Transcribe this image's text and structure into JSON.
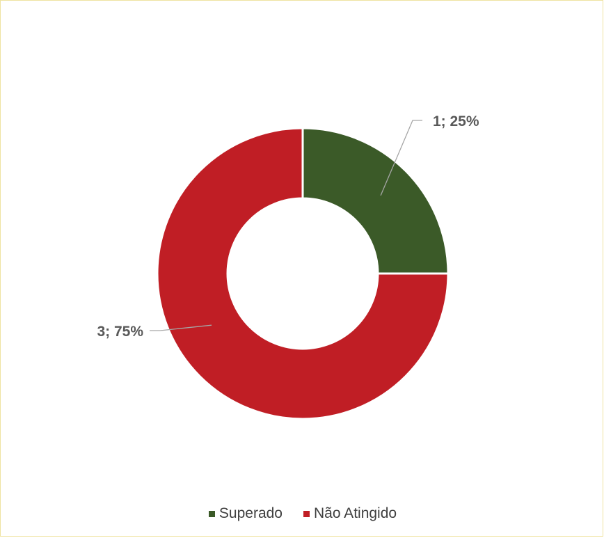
{
  "chart_data": {
    "type": "pie",
    "variant": "doughnut",
    "title": "",
    "categories": [
      "Superado",
      "Não Atingido"
    ],
    "values": [
      1,
      3
    ],
    "percentages": [
      25,
      75
    ],
    "colors": [
      "#3b5a28",
      "#c01e25"
    ],
    "data_labels": [
      "1; 25%",
      "3; 75%"
    ],
    "legend": {
      "position": "bottom",
      "entries": [
        {
          "label": "Superado",
          "color": "#3b5a28"
        },
        {
          "label": "Não Atingido",
          "color": "#c01e25"
        }
      ]
    }
  }
}
